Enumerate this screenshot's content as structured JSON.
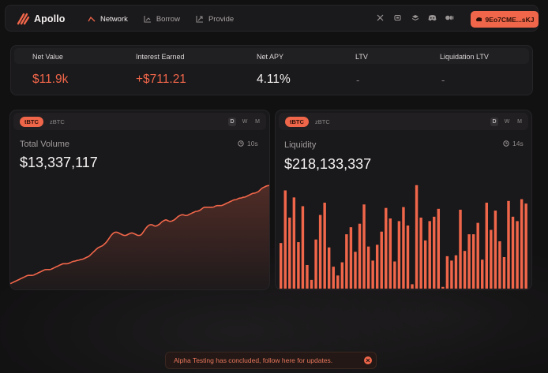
{
  "app": {
    "name": "Apollo"
  },
  "nav": [
    {
      "label": "Network",
      "active": true
    },
    {
      "label": "Borrow",
      "active": false
    },
    {
      "label": "Provide",
      "active": false
    }
  ],
  "socials": [
    "x-icon",
    "gitbook-icon",
    "docs-icon",
    "discord-icon",
    "medium-icon"
  ],
  "wallet": {
    "label": "9Eo7CME...sKJ"
  },
  "stats": [
    {
      "label": "Net Value",
      "value": "$11.9k"
    },
    {
      "label": "Interest Earned",
      "value": "+$711.21"
    },
    {
      "label": "Net APY",
      "value": "4.11%"
    },
    {
      "label": "LTV",
      "value": "-"
    },
    {
      "label": "Liquidation LTV",
      "value": "-"
    }
  ],
  "colors": {
    "accent": "#f0664a",
    "background": "#121112",
    "card": "#19181a"
  },
  "volume_card": {
    "tokens": [
      "tBTC",
      "zBTC"
    ],
    "selected_token": "tBTC",
    "periods": [
      "D",
      "W",
      "M"
    ],
    "selected_period": "D",
    "title": "Total Volume",
    "value": "$13,337,117",
    "refresh": "10s"
  },
  "liquidity_card": {
    "tokens": [
      "tBTC",
      "zBTC"
    ],
    "selected_token": "tBTC",
    "periods": [
      "D",
      "W",
      "M"
    ],
    "selected_period": "D",
    "title": "Liquidity",
    "value": "$218,133,337",
    "refresh": "14s"
  },
  "chart_data": [
    {
      "type": "area",
      "x": [
        0,
        1,
        2,
        3,
        4,
        5,
        6,
        7,
        8,
        9,
        10,
        11,
        12,
        13,
        14,
        15,
        16,
        17,
        18,
        19,
        20,
        21,
        22,
        23,
        24,
        25,
        26,
        27,
        28,
        29,
        30,
        31,
        32,
        33,
        34,
        35,
        36,
        37,
        38,
        39,
        40,
        41,
        42,
        43,
        44,
        45,
        46,
        47,
        48,
        49,
        50,
        51,
        52,
        53,
        54,
        55,
        56,
        57,
        58,
        59,
        60,
        61,
        62,
        63,
        64,
        65,
        66,
        67,
        68,
        69,
        70,
        71,
        72,
        73,
        74,
        75,
        76,
        77,
        78,
        79,
        80,
        81,
        82,
        83,
        84,
        85,
        86,
        87,
        88,
        89,
        90,
        91,
        92,
        93,
        94,
        95,
        96,
        97,
        98,
        99,
        100,
        101,
        102,
        103,
        104,
        105,
        106,
        107,
        108,
        109,
        110,
        111,
        112,
        113,
        114,
        115,
        116,
        117,
        118,
        119,
        120,
        121,
        122,
        123,
        124,
        125,
        126,
        127,
        128,
        129,
        130,
        131,
        132,
        133,
        134,
        135,
        136,
        137,
        138,
        139,
        140,
        141,
        142,
        143,
        144,
        145,
        146,
        147,
        148,
        149
      ],
      "values": [
        5,
        6,
        7,
        8,
        9,
        10,
        11,
        12,
        13,
        14,
        15,
        15,
        15,
        15,
        16,
        17,
        18,
        19,
        20,
        21,
        22,
        22,
        22,
        22,
        23,
        24,
        25,
        26,
        27,
        28,
        29,
        29,
        29,
        29,
        30,
        31,
        32,
        32,
        33,
        33,
        34,
        34,
        35,
        36,
        37,
        38,
        40,
        42,
        44,
        46,
        48,
        49,
        50,
        51,
        53,
        55,
        58,
        61,
        64,
        66,
        67,
        67,
        66,
        65,
        64,
        63,
        63,
        64,
        65,
        66,
        66,
        65,
        64,
        63,
        63,
        64,
        67,
        70,
        73,
        75,
        76,
        76,
        75,
        74,
        75,
        76,
        78,
        80,
        81,
        82,
        81,
        80,
        80,
        81,
        82,
        84,
        86,
        87,
        88,
        88,
        87,
        87,
        88,
        89,
        90,
        91,
        92,
        92,
        93,
        94,
        96,
        97,
        97,
        97,
        97,
        97,
        97,
        98,
        99,
        99,
        99,
        99,
        100,
        101,
        102,
        103,
        104,
        105,
        106,
        106,
        107,
        108,
        108,
        109,
        109,
        110,
        111,
        112,
        113,
        114,
        114,
        115,
        116,
        118,
        120,
        121,
        122,
        123,
        123,
        124
      ],
      "ylim": [
        0,
        130
      ]
    },
    {
      "type": "bar",
      "values": [
        52,
        112,
        81,
        104,
        53,
        94,
        27,
        10,
        56,
        84,
        98,
        47,
        25,
        15,
        30,
        62,
        70,
        42,
        74,
        96,
        48,
        32,
        50,
        65,
        92,
        80,
        31,
        77,
        93,
        72,
        5,
        118,
        81,
        55,
        77,
        82,
        91,
        2,
        37,
        32,
        38,
        90,
        43,
        62,
        62,
        75,
        33,
        98,
        67,
        89,
        54,
        36,
        100,
        82,
        77,
        102,
        97
      ],
      "ylim": [
        0,
        125
      ]
    }
  ]
}
